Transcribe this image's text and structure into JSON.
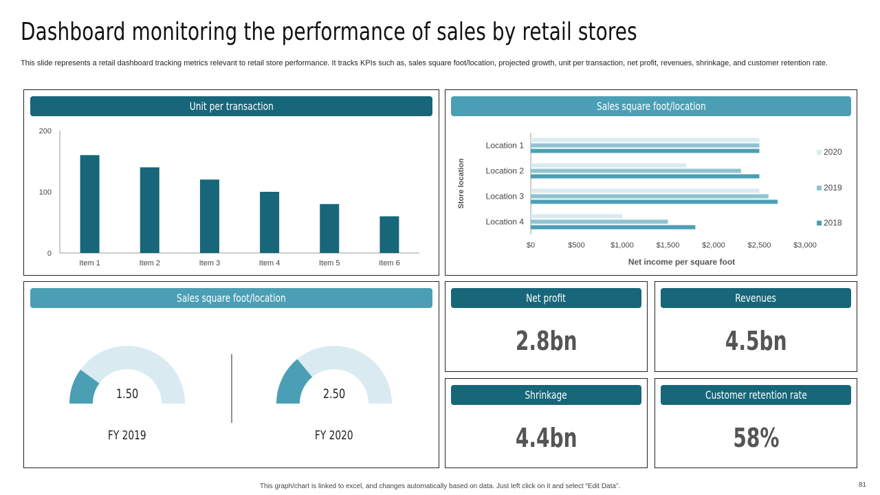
{
  "page": {
    "title": "Dashboard monitoring the performance of sales by retail stores",
    "subtitle": "This slide represents a retail dashboard tracking metrics relevant to retail store performance. It tracks KPIs such as, sales square foot/location, projected growth, unit per transaction, net profit, revenues, shrinkage, and customer retention rate.",
    "footer": "This graph/chart is linked to excel, and changes automatically based on data. Just left click on it and select “Edit Data”.",
    "page_number": "81"
  },
  "colors": {
    "dark": "#17667a",
    "light": "#4b9fb5",
    "pale": "#d9ebf0",
    "mid": "#8fc3d0"
  },
  "panels": {
    "unit_per_transaction": {
      "header": "Unit per transaction"
    },
    "sales_sqft_location": {
      "header": "Sales square foot/location"
    },
    "gauges": {
      "header": "Sales square foot/location"
    }
  },
  "gauges": [
    {
      "label": "FY 2019",
      "value_text": "1.50",
      "fraction": 0.2
    },
    {
      "label": "FY 2020",
      "value_text": "2.50",
      "fraction": 0.28
    }
  ],
  "kpis": {
    "net_profit": {
      "header": "Net profit",
      "value": "2.8bn"
    },
    "revenues": {
      "header": "Revenues",
      "value": "4.5bn"
    },
    "shrinkage": {
      "header": "Shrinkage",
      "value": "4.4bn"
    },
    "retention": {
      "header": "Customer retention rate",
      "value": "58%"
    }
  },
  "chart_data": [
    {
      "type": "bar",
      "title": "Unit per transaction",
      "categories": [
        "Item 1",
        "Item 2",
        "Item 3",
        "Item 4",
        "Item 5",
        "Item 6"
      ],
      "values": [
        160,
        140,
        120,
        100,
        80,
        60
      ],
      "ylim": [
        0,
        200
      ],
      "yticks": [
        "0",
        "100",
        "200"
      ],
      "xlabel": "",
      "ylabel": ""
    },
    {
      "type": "bar",
      "orientation": "horizontal",
      "title": "Sales square foot/location",
      "categories": [
        "Location 1",
        "Location 2",
        "Location 3",
        "Location 4"
      ],
      "series": [
        {
          "name": "2020",
          "values": [
            2500,
            1700,
            2500,
            1000
          ]
        },
        {
          "name": "2019",
          "values": [
            2500,
            2300,
            2600,
            1500
          ]
        },
        {
          "name": "2018",
          "values": [
            2500,
            2500,
            2700,
            1800
          ]
        }
      ],
      "xlim": [
        0,
        3000
      ],
      "xticks": [
        "$0",
        "$500",
        "$1,000",
        "$1,500",
        "$2,000",
        "$2,500",
        "$3,000"
      ],
      "xlabel": "Net income per square foot",
      "ylabel": "Store location",
      "legend": "right"
    }
  ]
}
